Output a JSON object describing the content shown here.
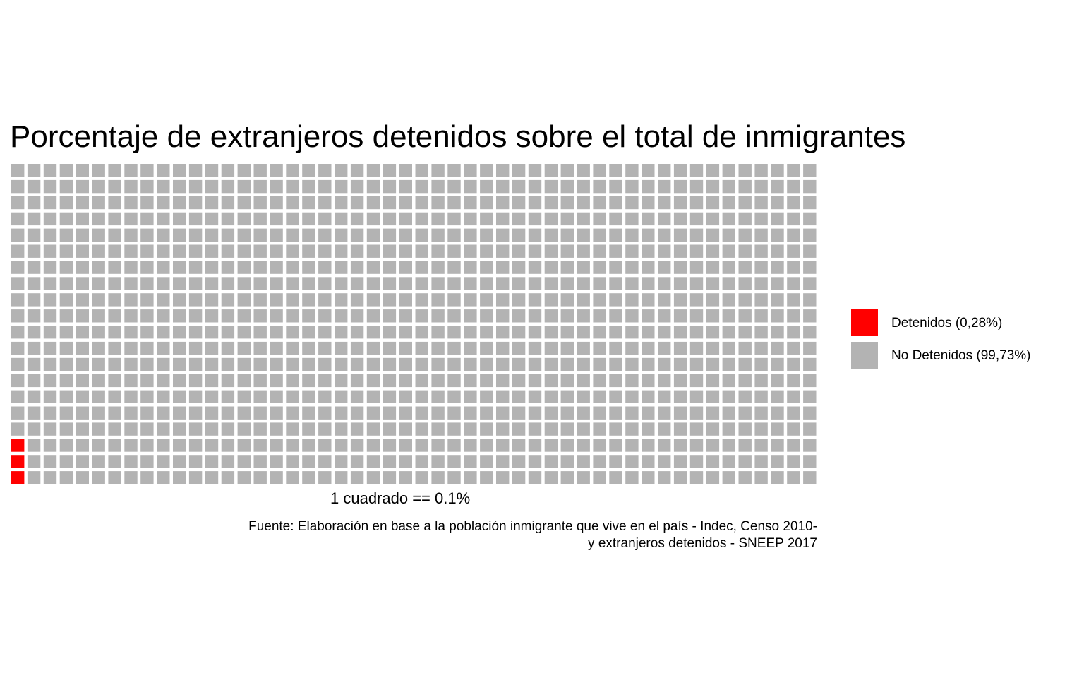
{
  "chart_data": {
    "type": "waffle",
    "title": "Porcentaje de extranjeros detenidos sobre el total de inmigrantes",
    "xlabel": "1 cuadrado == 0.1%",
    "caption": [
      "Fuente: Elaboración en base a la población inmigrante que vive en el país - Indec, Censo 2010-",
      "y extranjeros detenidos - SNEEP 2017"
    ],
    "grid": {
      "rows": 20,
      "cols": 50,
      "fill_order": "column-wise from bottom-left"
    },
    "series": [
      {
        "name": "Detenidos (0,28%)",
        "squares": 3,
        "color": "#ff0000"
      },
      {
        "name": "No Detenidos (99,73%)",
        "squares": 997,
        "color": "#b3b3b3"
      }
    ],
    "legend_position": "right"
  }
}
